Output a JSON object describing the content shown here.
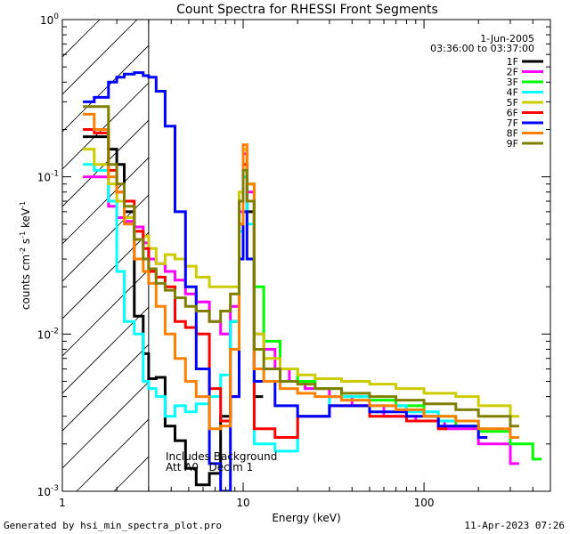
{
  "chart_data": {
    "type": "line",
    "title": "Count Spectra for RHESSI Front Segments",
    "xlabel": "Energy (keV)",
    "ylabel": "counts cm-2 s-1 keV-1",
    "xscale": "log",
    "yscale": "log",
    "xlim": [
      1,
      500
    ],
    "ylim": [
      0.001,
      1
    ],
    "x_ticks": [
      {
        "value": 1,
        "label": "1"
      },
      {
        "value": 10,
        "label": "10"
      },
      {
        "value": 100,
        "label": "100"
      }
    ],
    "y_ticks": [
      {
        "value": 0.001,
        "base": "10",
        "exp": "-3"
      },
      {
        "value": 0.01,
        "base": "10",
        "exp": "-2"
      },
      {
        "value": 0.1,
        "base": "10",
        "exp": "-1"
      },
      {
        "value": 1,
        "base": "10",
        "exp": "0"
      }
    ],
    "legend_position": "top-right",
    "annotations": {
      "date": "1-Jun-2005",
      "time_range": "03:36:00 to 03:37:00",
      "note_line1": "Includes Background",
      "note_line2": "Att A0   Decim 1"
    },
    "hatched_region_keV": [
      1,
      3
    ],
    "series": [
      {
        "name": "1F",
        "color": "#000000",
        "x": [
          1.3,
          1.5,
          1.8,
          2.0,
          2.2,
          2.5,
          2.8,
          3.0,
          3.3,
          3.7,
          4.2,
          4.8,
          5.5,
          6.5,
          7.5,
          8.5,
          9.5,
          10.0,
          10.5,
          11.5
        ],
        "y": [
          0.18,
          0.18,
          0.15,
          0.12,
          0.06,
          0.013,
          0.0075,
          0.0052,
          0.0053,
          0.0026,
          0.0021,
          0.0014,
          0.0011,
          0.0013,
          0.003,
          0.012,
          0.05,
          0.1,
          0.06,
          0.004
        ]
      },
      {
        "name": "2F",
        "color": "#ff00ff",
        "x": [
          1.3,
          1.5,
          1.8,
          2.0,
          2.2,
          2.5,
          2.8,
          3.0,
          3.3,
          3.7,
          4.2,
          4.8,
          5.5,
          6.5,
          7.5,
          8.5,
          9.5,
          10.0,
          10.5,
          11.5,
          13,
          15,
          18,
          22,
          30,
          40,
          60,
          90,
          130,
          200,
          300
        ],
        "y": [
          0.1,
          0.1,
          0.065,
          0.055,
          0.052,
          0.048,
          0.038,
          0.03,
          0.028,
          0.025,
          0.022,
          0.018,
          0.016,
          0.012,
          0.01,
          0.015,
          0.06,
          0.14,
          0.08,
          0.01,
          0.008,
          0.006,
          0.005,
          0.0045,
          0.004,
          0.0035,
          0.003,
          0.0028,
          0.0025,
          0.002,
          0.0015
        ]
      },
      {
        "name": "3F",
        "color": "#00ff00",
        "x": [
          10.0,
          10.5,
          11.5,
          13,
          16,
          20,
          25,
          35,
          50,
          70,
          100,
          150,
          200,
          300,
          400
        ],
        "y": [
          0.12,
          0.09,
          0.02,
          0.009,
          0.006,
          0.005,
          0.0045,
          0.004,
          0.0038,
          0.0035,
          0.003,
          0.0026,
          0.0024,
          0.002,
          0.0016
        ]
      },
      {
        "name": "4F",
        "color": "#00ffff",
        "x": [
          1.3,
          1.5,
          1.8,
          2.0,
          2.2,
          2.5,
          2.8,
          3.0,
          3.3,
          3.7,
          4.2,
          4.8,
          5.5,
          6.5,
          7.5,
          8.5,
          9.5,
          10.0,
          10.5,
          11.5,
          15,
          20,
          30,
          50,
          80,
          120,
          200
        ],
        "y": [
          0.12,
          0.11,
          0.07,
          0.025,
          0.012,
          0.01,
          0.005,
          0.0045,
          0.004,
          0.003,
          0.0035,
          0.0032,
          0.0036,
          0.004,
          0.0055,
          0.012,
          0.045,
          0.1,
          0.05,
          0.002,
          0.0018,
          0.003,
          0.004,
          0.0035,
          0.0032,
          0.0028,
          0.0025
        ]
      },
      {
        "name": "5F",
        "color": "#cccc00",
        "x": [
          1.3,
          1.5,
          1.8,
          2.0,
          2.2,
          2.5,
          2.8,
          3.0,
          3.3,
          3.7,
          4.2,
          4.8,
          5.5,
          6.5,
          7.5,
          8.5,
          9.5,
          10.0,
          10.5,
          11.5,
          13,
          16,
          20,
          25,
          35,
          50,
          70,
          100,
          150,
          200,
          300
        ],
        "y": [
          0.15,
          0.12,
          0.09,
          0.07,
          0.055,
          0.045,
          0.042,
          0.035,
          0.028,
          0.032,
          0.03,
          0.027,
          0.023,
          0.02,
          0.02,
          0.02,
          0.08,
          0.15,
          0.09,
          0.01,
          0.007,
          0.006,
          0.0055,
          0.0052,
          0.005,
          0.0048,
          0.0045,
          0.0042,
          0.004,
          0.0035,
          0.003
        ]
      },
      {
        "name": "6F",
        "color": "#ff0000",
        "x": [
          1.3,
          1.5,
          1.8,
          2.0,
          2.2,
          2.5,
          2.8,
          3.0,
          3.3,
          3.7,
          4.2,
          4.8,
          5.5,
          6.5,
          7.5,
          8.5,
          9.5,
          10.0,
          10.5,
          11.5,
          15,
          20,
          30,
          50,
          80,
          120
        ],
        "y": [
          0.2,
          0.19,
          0.11,
          0.08,
          0.07,
          0.045,
          0.035,
          0.025,
          0.023,
          0.02,
          0.012,
          0.011,
          0.01,
          0.0045,
          0.0028,
          0.004,
          0.03,
          0.12,
          0.07,
          0.0025,
          0.0022,
          0.003,
          0.0035,
          0.003,
          0.0028,
          0.0025
        ]
      },
      {
        "name": "7F",
        "color": "#0000ff",
        "x": [
          1.3,
          1.5,
          1.8,
          2.0,
          2.2,
          2.5,
          2.8,
          3.0,
          3.3,
          3.7,
          4.2,
          4.8,
          5.5,
          6.5,
          7.5,
          8.5,
          9.5,
          10.0,
          10.5,
          11.5,
          15,
          20,
          30,
          50,
          80,
          120,
          200
        ],
        "y": [
          0.3,
          0.32,
          0.4,
          0.43,
          0.45,
          0.46,
          0.44,
          0.43,
          0.35,
          0.21,
          0.06,
          0.02,
          0.006,
          0.0015,
          0.001,
          0.004,
          0.03,
          0.06,
          0.03,
          0.005,
          0.0035,
          0.003,
          0.0035,
          0.0032,
          0.003,
          0.0026,
          0.0022
        ]
      },
      {
        "name": "8F",
        "color": "#ff8000",
        "x": [
          1.3,
          1.5,
          1.8,
          2.0,
          2.2,
          2.5,
          2.8,
          3.0,
          3.3,
          3.7,
          4.2,
          4.8,
          5.5,
          6.5,
          7.5,
          8.5,
          9.5,
          10.0,
          10.5,
          11.5,
          13,
          16,
          20,
          25,
          35,
          50,
          70,
          100,
          150,
          200,
          300
        ],
        "y": [
          0.25,
          0.2,
          0.1,
          0.08,
          0.05,
          0.03,
          0.025,
          0.021,
          0.015,
          0.01,
          0.007,
          0.005,
          0.004,
          0.0025,
          0.0026,
          0.008,
          0.05,
          0.16,
          0.09,
          0.006,
          0.005,
          0.0045,
          0.0042,
          0.004,
          0.0038,
          0.0035,
          0.0033,
          0.003,
          0.0028,
          0.0025,
          0.0022
        ]
      },
      {
        "name": "9F",
        "color": "#808000",
        "x": [
          1.3,
          1.5,
          1.8,
          2.0,
          2.2,
          2.5,
          2.8,
          3.0,
          3.3,
          3.7,
          4.2,
          4.8,
          5.5,
          6.5,
          7.5,
          8.5,
          9.5,
          10.0,
          10.5,
          11.5,
          13,
          16,
          20,
          25,
          35,
          50,
          70,
          100,
          150,
          200,
          300
        ],
        "y": [
          0.28,
          0.28,
          0.12,
          0.09,
          0.065,
          0.04,
          0.03,
          0.026,
          0.021,
          0.019,
          0.017,
          0.015,
          0.014,
          0.012,
          0.014,
          0.018,
          0.07,
          0.11,
          0.07,
          0.008,
          0.006,
          0.005,
          0.0048,
          0.0045,
          0.0042,
          0.004,
          0.0038,
          0.0036,
          0.0033,
          0.003,
          0.0026
        ]
      }
    ]
  },
  "footer": {
    "left": "Generated by hsi_min_spectra_plot.pro",
    "right": "11-Apr-2023 07:26"
  }
}
